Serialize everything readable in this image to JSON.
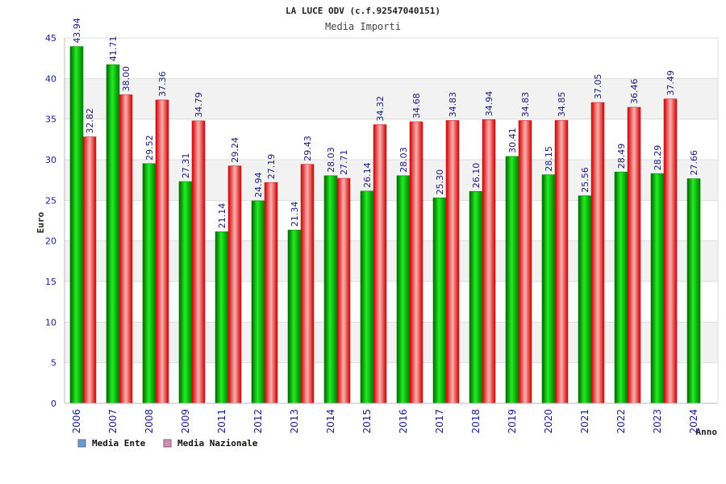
{
  "chart_data": {
    "type": "bar",
    "title": "LA LUCE ODV (c.f.92547040151)",
    "subtitle": "Media Importi",
    "xlabel": "Anno",
    "ylabel": "Euro",
    "ylim": [
      0,
      45
    ],
    "yticks": [
      0,
      5,
      10,
      15,
      20,
      25,
      30,
      35,
      40,
      45
    ],
    "categories": [
      "2006",
      "2007",
      "2008",
      "2009",
      "2011",
      "2012",
      "2013",
      "2014",
      "2015",
      "2016",
      "2017",
      "2018",
      "2019",
      "2020",
      "2021",
      "2022",
      "2023",
      "2024"
    ],
    "series": [
      {
        "name": "Media Ente",
        "values": [
          43.94,
          41.71,
          29.52,
          27.31,
          21.14,
          24.94,
          21.34,
          28.03,
          26.14,
          28.03,
          25.3,
          26.1,
          30.41,
          28.15,
          25.56,
          28.49,
          28.29,
          27.66
        ],
        "labels": [
          "43.94",
          "41.71",
          "29.52",
          "27.31",
          "21.14",
          "24.94",
          "21.34",
          "28.03",
          "26.14",
          "28.03",
          "25.30",
          "26.10",
          "30.41",
          "28.15",
          "25.56",
          "28.49",
          "28.29",
          "27.66"
        ],
        "color": "#00b000",
        "legend_color": "#6699dd"
      },
      {
        "name": "Media Nazionale",
        "values": [
          32.82,
          38.0,
          37.36,
          34.79,
          29.24,
          27.19,
          29.43,
          27.71,
          34.32,
          34.68,
          34.83,
          34.94,
          34.83,
          34.85,
          37.05,
          36.46,
          37.49,
          null
        ],
        "labels": [
          "32.82",
          "38.00",
          "37.36",
          "34.79",
          "29.24",
          "27.19",
          "29.43",
          "27.71",
          "34.32",
          "34.68",
          "34.83",
          "34.94",
          "34.83",
          "34.85",
          "37.05",
          "36.46",
          "37.49",
          null
        ],
        "color": "#e81818",
        "legend_color": "#dd88bb"
      }
    ],
    "grid": true,
    "legend_position": "bottom-left"
  }
}
